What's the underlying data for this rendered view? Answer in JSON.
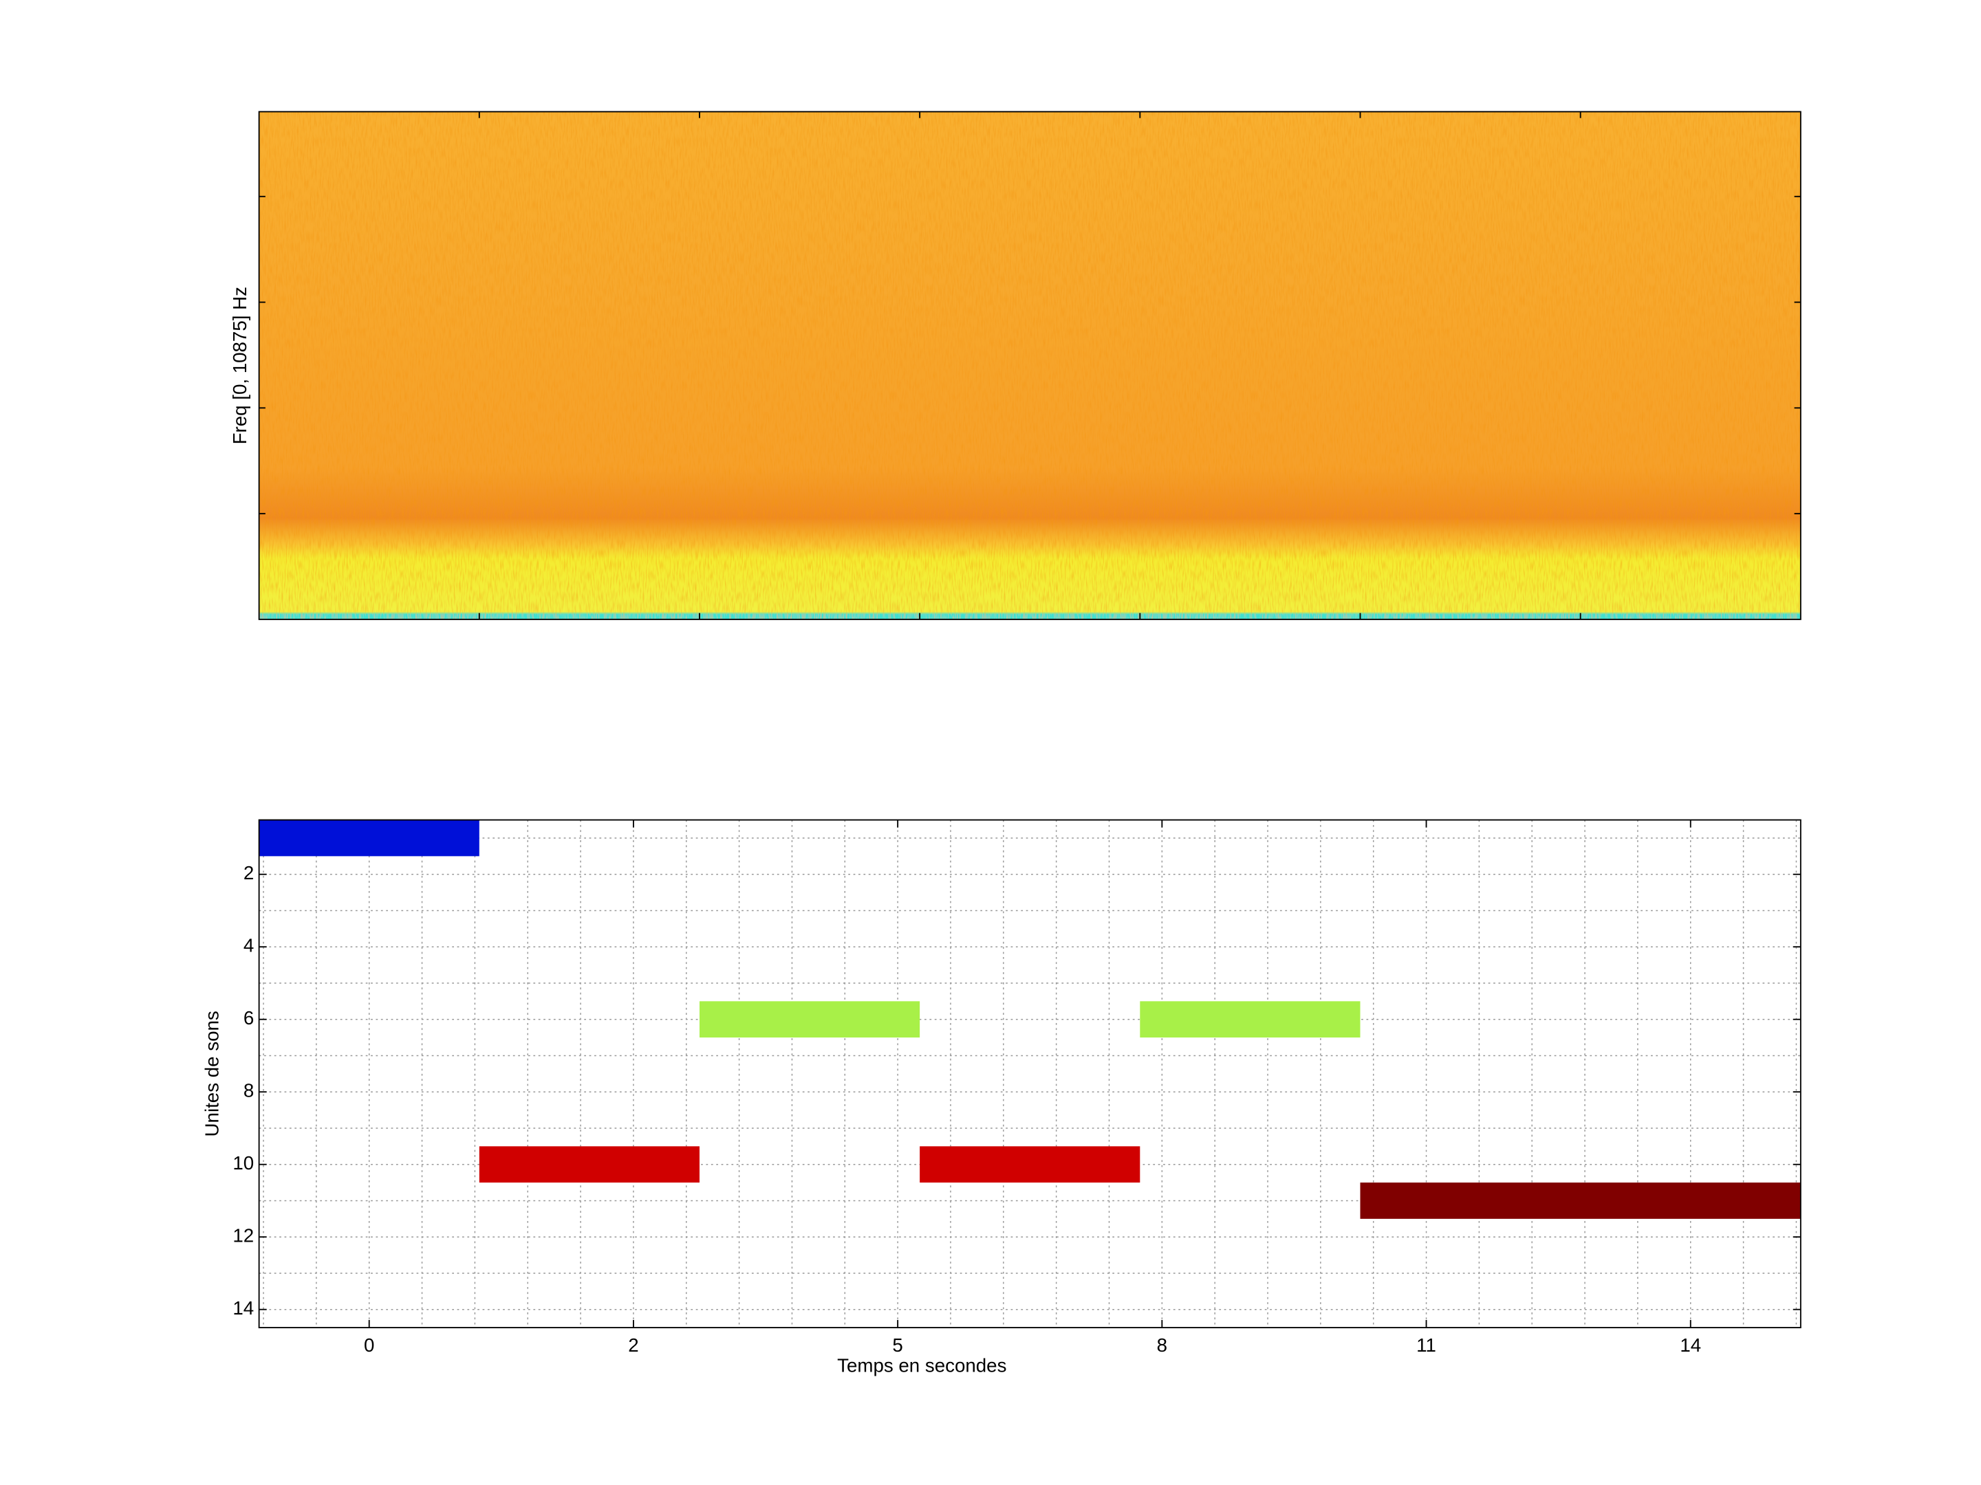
{
  "chart_data": [
    {
      "type": "spectrogram",
      "ylabel": "Freq [0, 10875] Hz"
    },
    {
      "type": "gantt",
      "xlabel": "Temps en secondes",
      "ylabel": "Unites de sons",
      "xlim": [
        0,
        7
      ],
      "xticks": [
        {
          "value": 0.5,
          "label": "0"
        },
        {
          "value": 1.7,
          "label": "2"
        },
        {
          "value": 2.9,
          "label": "5"
        },
        {
          "value": 4.1,
          "label": "8"
        },
        {
          "value": 5.3,
          "label": "11"
        },
        {
          "value": 6.5,
          "label": "14"
        }
      ],
      "ylim": [
        0.5,
        14.5
      ],
      "yticks": [
        2,
        4,
        6,
        8,
        10,
        12,
        14
      ],
      "y_reversed": true,
      "grid": true,
      "bars": [
        {
          "row": 1,
          "start": 0,
          "end": 1,
          "color": "#0010d8"
        },
        {
          "row": 10,
          "start": 1,
          "end": 2,
          "color": "#d00000"
        },
        {
          "row": 6,
          "start": 2,
          "end": 3,
          "color": "#a8f048"
        },
        {
          "row": 10,
          "start": 3,
          "end": 4,
          "color": "#d00000"
        },
        {
          "row": 6,
          "start": 4,
          "end": 5,
          "color": "#a8f048"
        },
        {
          "row": 11,
          "start": 5,
          "end": 7,
          "color": "#800000"
        }
      ]
    }
  ]
}
